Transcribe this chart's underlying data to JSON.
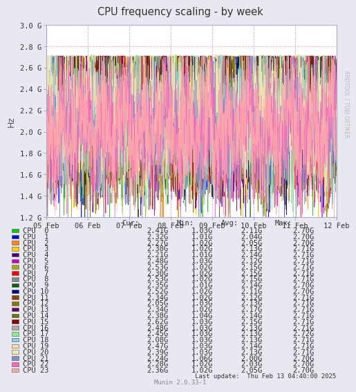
{
  "title": "CPU frequency scaling - by week",
  "ylabel": "Hz",
  "watermark": "RRDTOOL / TOBI OETIKER",
  "footer": "Last update:  Thu Feb 13 04:40:00 2025",
  "munin_version": "Munin 2.0.33-1",
  "x_tick_labels": [
    "05 Feb",
    "06 Feb",
    "07 Feb",
    "08 Feb",
    "09 Feb",
    "10 Feb",
    "11 Feb",
    "12 Feb"
  ],
  "ylim": [
    1200000000.0,
    3000000000.0
  ],
  "ytick_labels": [
    "1.2 G",
    "1.4 G",
    "1.6 G",
    "1.8 G",
    "2.0 G",
    "2.2 G",
    "2.4 G",
    "2.6 G",
    "2.8 G",
    "3.0 G"
  ],
  "bg_color": "#e8e8f0",
  "plot_bg_color": "#ffffff",
  "grid_color_h": "#ffaaaa",
  "grid_color_v": "#aaaaff",
  "cpu_colors": [
    "#00cc00",
    "#0000ff",
    "#ff8800",
    "#ffcc00",
    "#440088",
    "#cc00cc",
    "#aaaa00",
    "#ff0000",
    "#888888",
    "#006600",
    "#000088",
    "#884400",
    "#887700",
    "#660066",
    "#667700",
    "#880000",
    "#aaaaaa",
    "#88ee88",
    "#88ccee",
    "#ffddaa",
    "#eeeeaa",
    "#8888cc",
    "#ff66bb",
    "#ffaaaa"
  ],
  "cpu_labels": [
    "CPU  0",
    "CPU  1",
    "CPU  2",
    "CPU  3",
    "CPU  4",
    "CPU  5",
    "CPU  6",
    "CPU  7",
    "CPU  8",
    "CPU  9",
    "CPU 10",
    "CPU 11",
    "CPU 12",
    "CPU 13",
    "CPU 14",
    "CPU 15",
    "CPU 16",
    "CPU 17",
    "CPU 18",
    "CPU 19",
    "CPU 20",
    "CPU 21",
    "CPU 22",
    "CPU 23"
  ],
  "cpu_cur": [
    2.41,
    2.32,
    2.27,
    2.38,
    2.21,
    2.48,
    2.53,
    2.3,
    2.53,
    2.35,
    2.52,
    2.34,
    2.05,
    2.34,
    2.38,
    2.62,
    2.48,
    2.45,
    2.08,
    2.47,
    2.39,
    2.24,
    2.28,
    2.36
  ],
  "cpu_min": [
    1.03,
    1.01,
    1.02,
    1.02,
    1.01,
    1.03,
    1.02,
    1.02,
    1.02,
    1.01,
    1.02,
    1.02,
    1.03,
    1.02,
    1.04,
    1.03,
    1.03,
    1.03,
    1.03,
    1.03,
    1.03,
    1.06,
    1.02,
    1.02
  ],
  "cpu_avg": [
    2.11,
    2.04,
    2.05,
    2.13,
    2.14,
    2.12,
    2.15,
    2.15,
    2.15,
    2.14,
    2.11,
    2.12,
    2.13,
    2.17,
    2.14,
    2.15,
    2.13,
    2.13,
    2.13,
    2.14,
    2.13,
    2.0,
    2.03,
    2.05
  ],
  "cpu_max": [
    2.7,
    2.7,
    2.7,
    2.71,
    2.71,
    2.71,
    2.71,
    2.71,
    2.71,
    2.7,
    2.7,
    2.71,
    2.71,
    2.71,
    2.71,
    2.71,
    2.71,
    2.72,
    2.71,
    2.71,
    2.71,
    2.7,
    2.7,
    2.7
  ],
  "n_points": 1200,
  "seed": 42
}
